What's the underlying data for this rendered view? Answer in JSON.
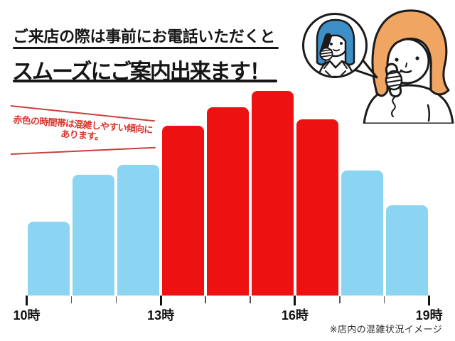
{
  "header": {
    "line1": "ご来店の際は事前にお電話いただくと",
    "line2": "スムーズにご案内出来ます！"
  },
  "annotation": {
    "line1": "赤色の時間帯は混雑しやすい傾向に",
    "line2": "あります。",
    "text_color": "#d8352b",
    "line_color": "#c5413c"
  },
  "footnote": "※店内の混雑状況イメージ",
  "illustration": {
    "name": "phone-call-illustration",
    "staff_hair_color": "#3e8ec8",
    "customer_hair_color": "#f0a662",
    "outline_color": "#1a1a1a"
  },
  "chart_data": {
    "type": "bar",
    "title": "",
    "xlabel": "",
    "ylabel": "",
    "categories": [
      "10-11時",
      "11-12時",
      "12-13時",
      "13-14時",
      "14-15時",
      "15-16時",
      "16-17時",
      "17-18時",
      "18-19時"
    ],
    "values": [
      36,
      59,
      64,
      83,
      92,
      100,
      86,
      61,
      44
    ],
    "value_meaning": "relative crowding, percent of 15-16時 peak (estimated from bar heights)",
    "statuses": [
      "calm",
      "calm",
      "calm",
      "busy",
      "busy",
      "busy",
      "busy",
      "calm",
      "calm"
    ],
    "colors": {
      "calm": "#8bd5f2",
      "busy": "#ed1111"
    },
    "x_tick_labels": [
      "10時",
      "13時",
      "16時",
      "19時"
    ],
    "x_axis_hours": [
      10,
      11,
      12,
      13,
      14,
      15,
      16,
      17,
      18,
      19
    ],
    "ylim": [
      0,
      100
    ],
    "grid": false,
    "legend": false
  }
}
